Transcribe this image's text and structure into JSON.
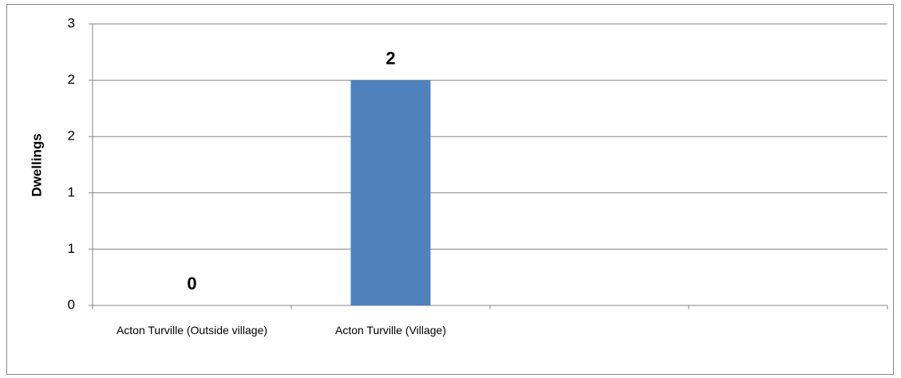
{
  "chart_data": {
    "type": "bar",
    "y_label": "Dwellings",
    "categories": [
      "Acton Turville (Outside village)",
      "Acton Turville (Village)",
      null,
      null
    ],
    "values": [
      0,
      2,
      null,
      null
    ],
    "color": "#4f81bd",
    "ylim": [
      0,
      2.5
    ],
    "yticks": [
      0,
      {
        "value": 0.5,
        "label": "1"
      },
      1,
      {
        "value": 1.5,
        "label": "2"
      },
      2,
      {
        "value": 2.5,
        "label": "3"
      }
    ],
    "grid": true
  }
}
